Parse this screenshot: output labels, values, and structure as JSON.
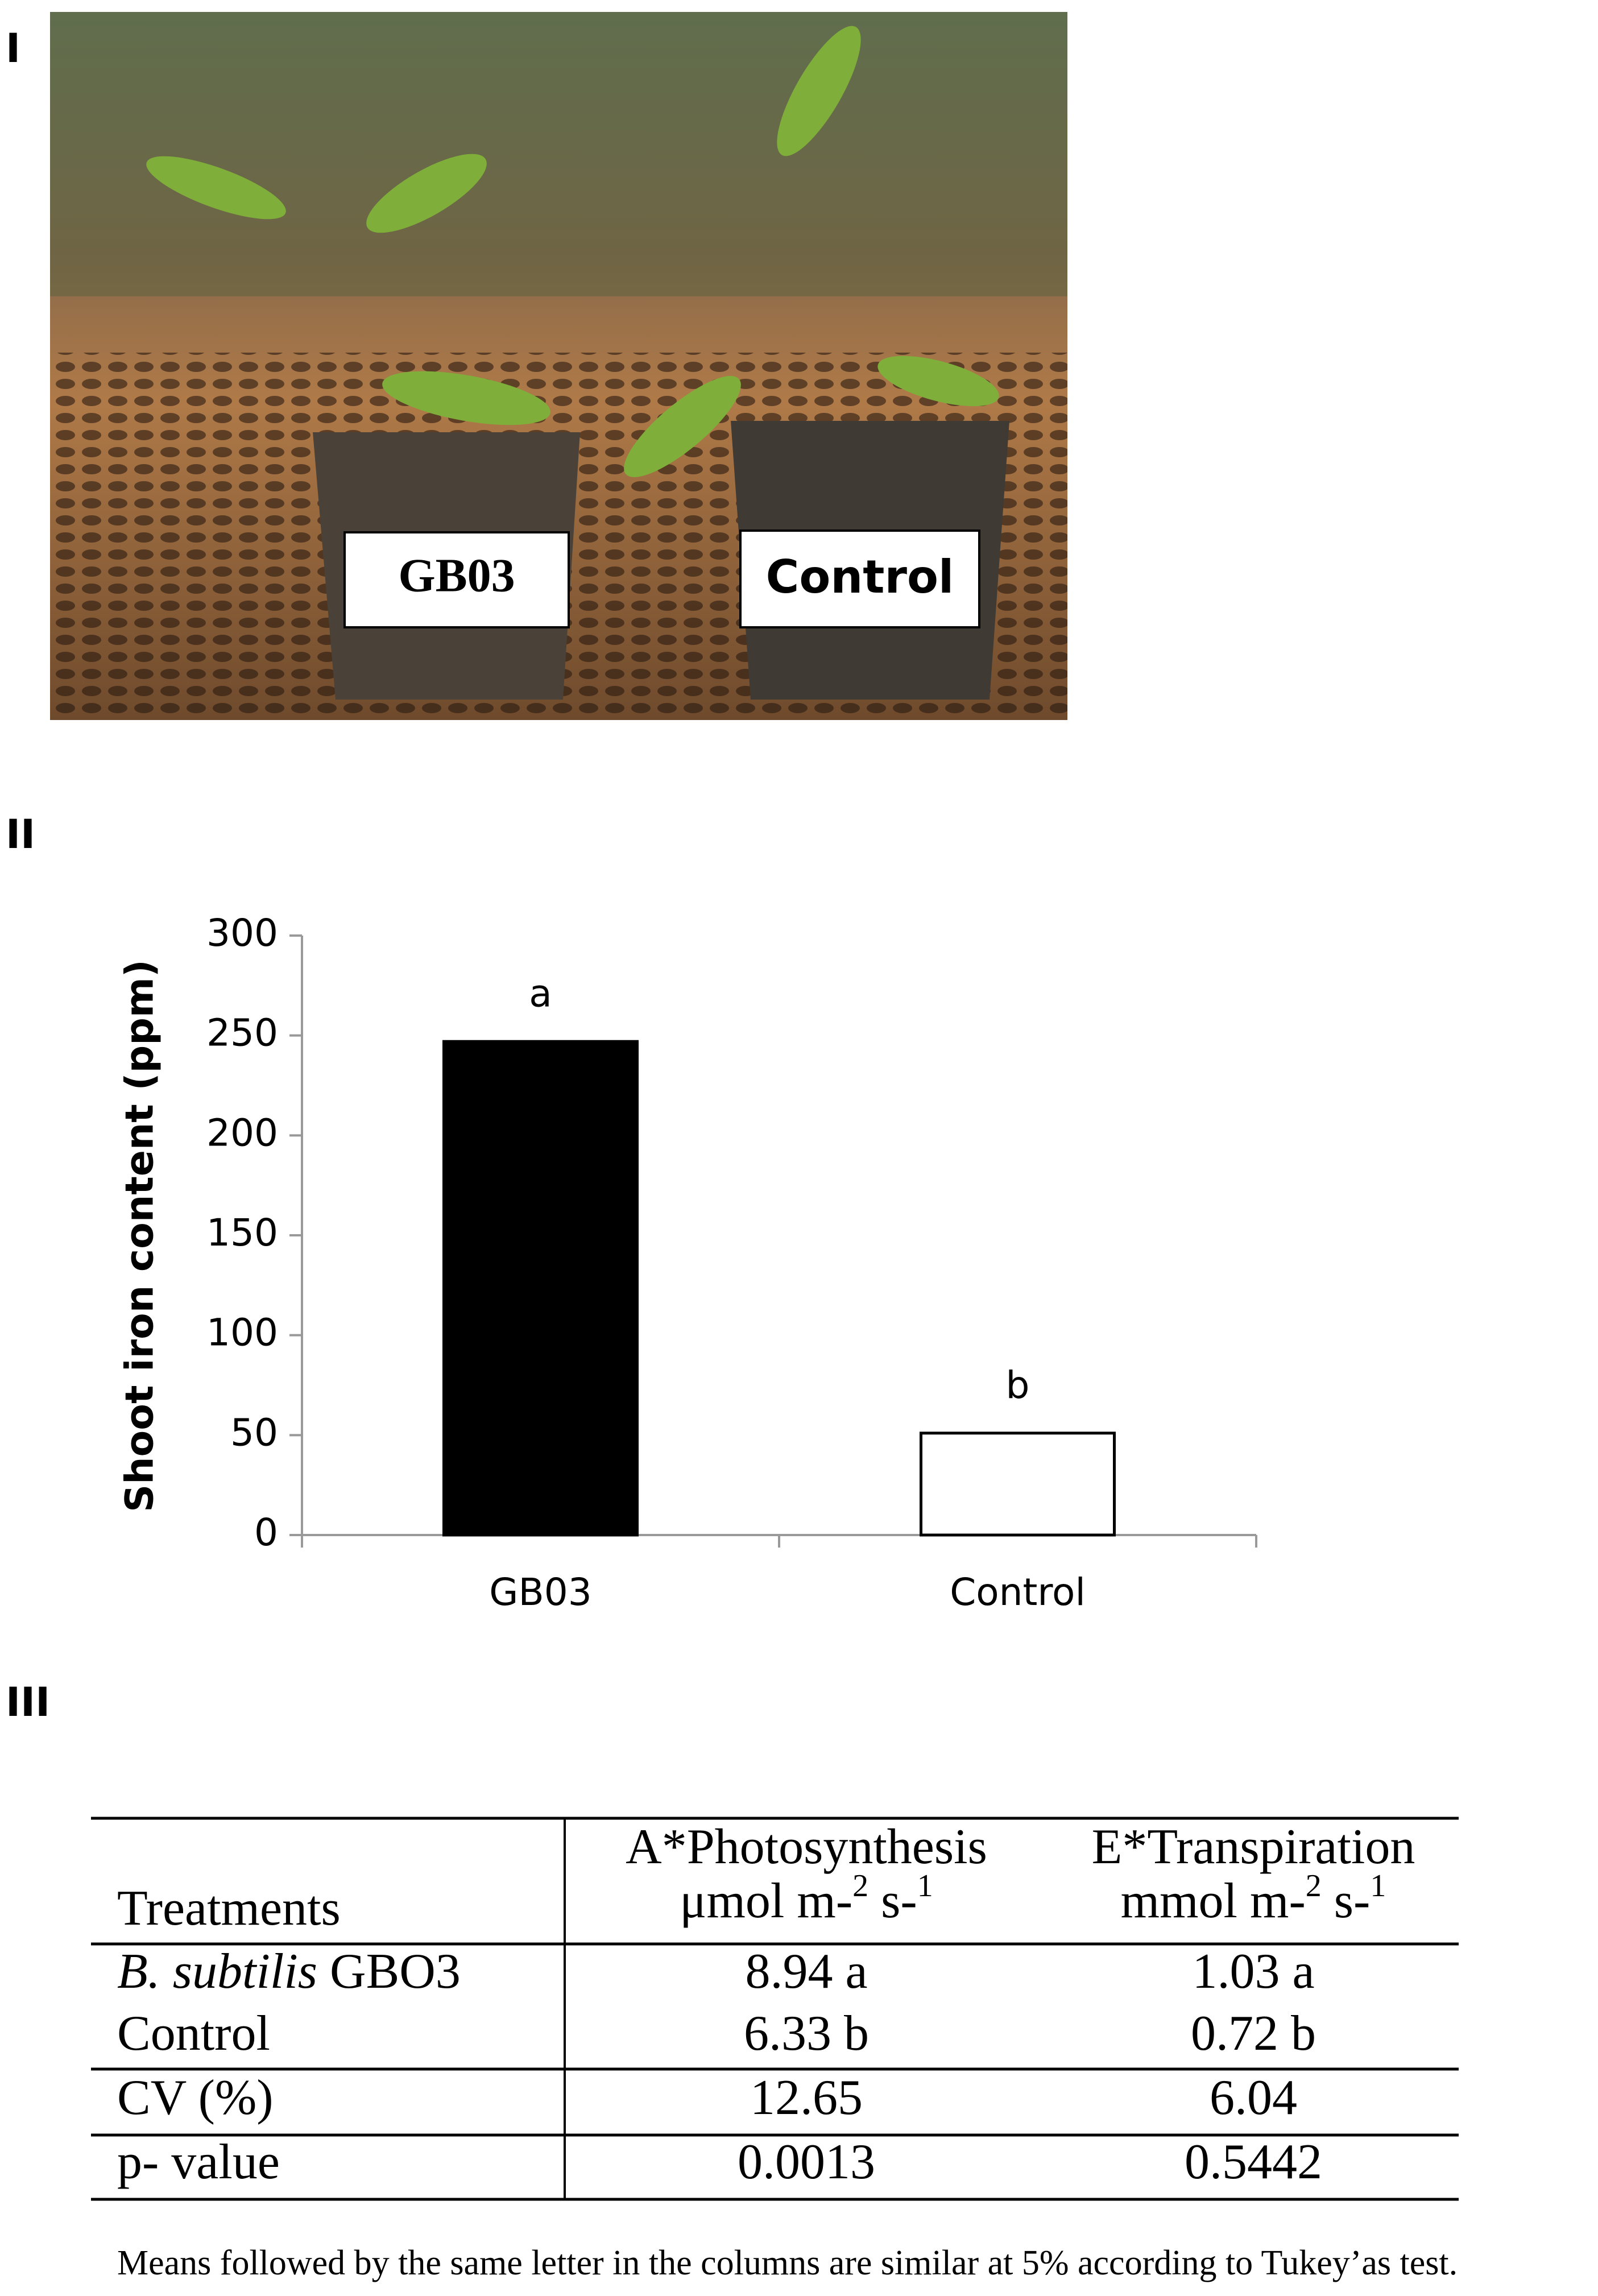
{
  "panel_labels": [
    "I",
    "II",
    "III"
  ],
  "photo": {
    "labels": [
      "GB03",
      "Control"
    ]
  },
  "chart_data": {
    "type": "bar",
    "ylabel": "Shoot iron content (ppm)",
    "categories": [
      "GB03",
      "Control"
    ],
    "values": [
      247,
      51
    ],
    "colors": [
      "#000000",
      "#ffffff"
    ],
    "letters": [
      "a",
      "b"
    ],
    "ylim": [
      0,
      300
    ],
    "yticks": [
      0,
      50,
      100,
      150,
      200,
      250,
      300
    ]
  },
  "table": {
    "header": [
      {
        "title": "Treatments"
      },
      {
        "title": "A*Photosynthesis",
        "unit": [
          "μmol m-",
          "2",
          " s-",
          "1"
        ]
      },
      {
        "title": "E*Transpiration",
        "unit": [
          "mmol m-",
          "2",
          " s-",
          "1"
        ]
      }
    ],
    "rows": [
      [
        {
          "italic": "B. subtilis",
          "text": " GBO3"
        },
        "8.94 a",
        "1.03 a"
      ],
      [
        "Control",
        "6.33 b",
        "0.72 b"
      ],
      [
        "CV (%)",
        "12.65",
        "6.04"
      ],
      [
        "p- value",
        "0.0013",
        "0.5442"
      ]
    ],
    "footnote": "Means followed by the same letter in the columns are similar at 5% according to Tukey’as test."
  }
}
